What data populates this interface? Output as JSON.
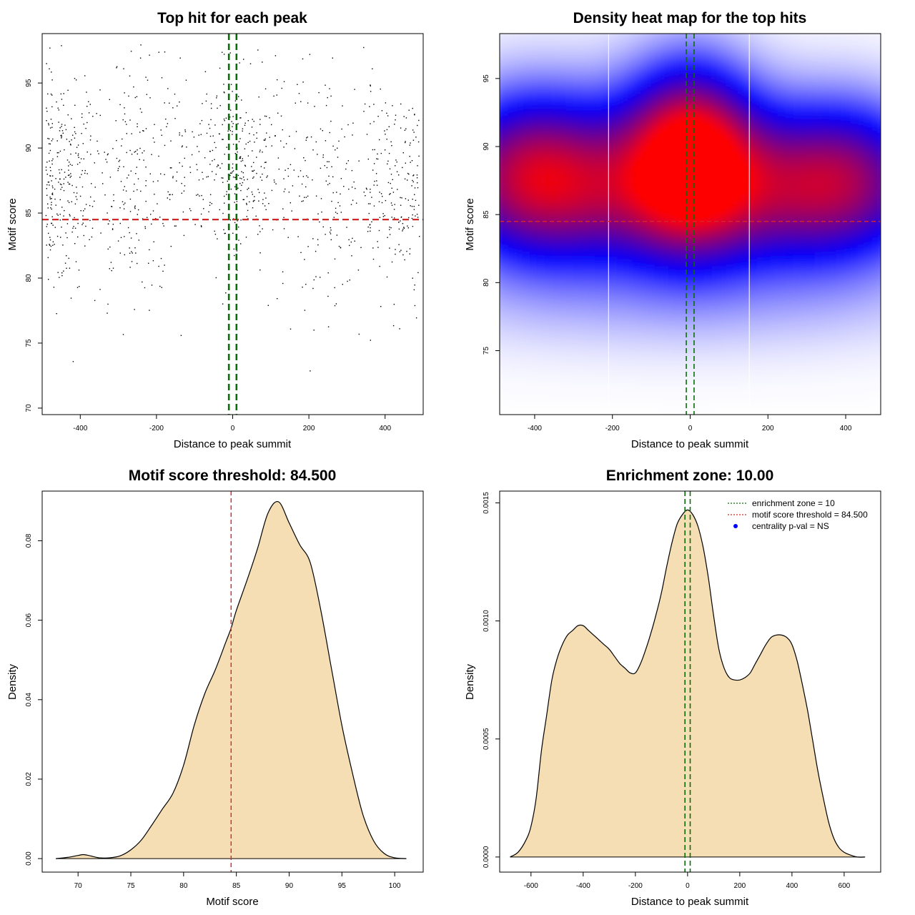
{
  "chart_data": [
    {
      "type": "scatter",
      "title": "Top hit for each peak",
      "xlabel": "Distance to peak summit",
      "ylabel": "Motif score",
      "xlim": [
        -500,
        500
      ],
      "ylim": [
        69.5,
        98.8
      ],
      "xticks": [
        -400,
        -200,
        0,
        200,
        400
      ],
      "yticks": [
        70,
        75,
        80,
        85,
        90,
        95
      ],
      "hline": 84.5,
      "vlines": [
        -10,
        10
      ],
      "point_count": 1200,
      "colors": {
        "points": "#000000",
        "hline": "#d62728",
        "vlines": "#0b6e0b"
      },
      "clusters": [
        {
          "x": -440,
          "sx": 45,
          "y": 87.5,
          "sy": 4,
          "n": 260
        },
        {
          "x": -260,
          "sx": 70,
          "y": 87.5,
          "sy": 4.5,
          "n": 230
        },
        {
          "x": 0,
          "sx": 70,
          "y": 89,
          "sy": 4,
          "n": 330
        },
        {
          "x": 240,
          "sx": 80,
          "y": 87,
          "sy": 4.5,
          "n": 180
        },
        {
          "x": 430,
          "sx": 50,
          "y": 86.5,
          "sy": 4,
          "n": 200
        }
      ]
    },
    {
      "type": "heatmap",
      "title": "Density heat map for the top hits",
      "xlabel": "Distance to peak summit",
      "ylabel": "Motif score",
      "xlim": [
        -490,
        490
      ],
      "ylim": [
        70.3,
        98.3
      ],
      "xticks": [
        -400,
        -200,
        0,
        200,
        400
      ],
      "yticks": [
        75,
        80,
        85,
        90,
        95
      ],
      "hline": 84.5,
      "vlines": [
        -10,
        10
      ],
      "bin_edges_x": [
        -210,
        152
      ],
      "colors": {
        "low": "#ffffff",
        "mid": "#0000ff",
        "high": "#ff0000",
        "hline": "#d62728",
        "vlines": "#0b6e0b"
      },
      "density_blobs": [
        {
          "x": -390,
          "sx": 170,
          "y": 88.3,
          "sy": 4.2,
          "w": 0.75
        },
        {
          "x": 0,
          "sx": 120,
          "y": 89.5,
          "sy": 4.5,
          "w": 1.0
        },
        {
          "x": 370,
          "sx": 170,
          "y": 88.0,
          "sy": 4.0,
          "w": 0.65
        },
        {
          "x": 0,
          "sx": 400,
          "y": 85.5,
          "sy": 3.5,
          "w": 0.35
        },
        {
          "x": 0,
          "sx": 500,
          "y": 79.0,
          "sy": 3.0,
          "w": 0.12
        }
      ]
    },
    {
      "type": "area",
      "title": "Motif score threshold: 84.500",
      "xlabel": "Motif score",
      "ylabel": "Density",
      "xlim": [
        66.6,
        102.7
      ],
      "ylim": [
        -0.0034,
        0.0925
      ],
      "xticks": [
        70,
        75,
        80,
        85,
        90,
        95,
        100
      ],
      "yticks": [
        0.0,
        0.02,
        0.04,
        0.06,
        0.08
      ],
      "ytick_labels": [
        "0.00",
        "0.02",
        "0.04",
        "0.06",
        "0.08"
      ],
      "vline": 84.5,
      "colors": {
        "fill": "#f5deb3",
        "line": "#000000",
        "vline": "#d62728"
      },
      "x": [
        67.9,
        69,
        70,
        70.5,
        71,
        72,
        73,
        74,
        75,
        76,
        77,
        78,
        79,
        80,
        81,
        82,
        83,
        84,
        84.5,
        85,
        86,
        87,
        88,
        89,
        90,
        91,
        92,
        93,
        94,
        95,
        96,
        97,
        98,
        99,
        100,
        101.1
      ],
      "y": [
        0.0,
        0.0003,
        0.0008,
        0.001,
        0.0008,
        0.0002,
        0.0002,
        0.0007,
        0.0022,
        0.0047,
        0.0085,
        0.0125,
        0.0165,
        0.0235,
        0.0335,
        0.0415,
        0.0475,
        0.0545,
        0.058,
        0.0625,
        0.07,
        0.078,
        0.087,
        0.0898,
        0.0845,
        0.079,
        0.0745,
        0.0625,
        0.048,
        0.0335,
        0.0215,
        0.011,
        0.0045,
        0.0013,
        0.0002,
        0.0
      ]
    },
    {
      "type": "area",
      "title": "Enrichment zone: 10.00",
      "xlabel": "Distance to peak summit",
      "ylabel": "Density",
      "xlim": [
        -720,
        740
      ],
      "ylim": [
        -6.4e-05,
        0.00155
      ],
      "xticks": [
        -600,
        -400,
        -200,
        0,
        200,
        400,
        600
      ],
      "yticks": [
        0.0,
        0.0005,
        0.001,
        0.0015
      ],
      "ytick_labels": [
        "0.0000",
        "0.0005",
        "0.0010",
        "0.0015"
      ],
      "vlines": [
        -10,
        10
      ],
      "colors": {
        "fill": "#f5deb3",
        "line": "#000000",
        "vlines": "#0b6e0b",
        "hline_legend": "#d62728",
        "point_legend": "#0000ff"
      },
      "legend": [
        "enrichment zone = 10",
        "motif score threshold = 84.500",
        "centrality p-val = NS"
      ],
      "legend_position": "top-right",
      "x": [
        -680,
        -650,
        -620,
        -600,
        -580,
        -560,
        -540,
        -520,
        -500,
        -480,
        -460,
        -440,
        -420,
        -400,
        -380,
        -350,
        -320,
        -300,
        -280,
        -260,
        -240,
        -220,
        -200,
        -180,
        -160,
        -140,
        -120,
        -100,
        -80,
        -60,
        -40,
        -20,
        0,
        20,
        40,
        60,
        80,
        100,
        120,
        140,
        160,
        180,
        200,
        220,
        240,
        260,
        280,
        300,
        320,
        340,
        360,
        380,
        400,
        420,
        440,
        460,
        480,
        500,
        520,
        540,
        560,
        580,
        600,
        620,
        650,
        680
      ],
      "y": [
        0.0,
        2e-05,
        7e-05,
        0.00013,
        0.00025,
        0.00045,
        0.0006,
        0.00075,
        0.00084,
        0.0009,
        0.00094,
        0.00096,
        0.00098,
        0.00098,
        0.00096,
        0.00093,
        0.0009,
        0.00088,
        0.00085,
        0.00082,
        0.0008,
        0.00078,
        0.00078,
        0.00082,
        0.00088,
        0.00095,
        0.00103,
        0.00112,
        0.00123,
        0.00133,
        0.00141,
        0.00145,
        0.00147,
        0.00145,
        0.0014,
        0.00131,
        0.00118,
        0.00102,
        0.00088,
        0.0008,
        0.00076,
        0.00075,
        0.00075,
        0.00076,
        0.00078,
        0.00082,
        0.00086,
        0.0009,
        0.00093,
        0.00094,
        0.00094,
        0.00093,
        0.0009,
        0.00083,
        0.00073,
        0.00062,
        0.00049,
        0.00036,
        0.00025,
        0.00015,
        8e-05,
        4e-05,
        2e-05,
        1e-05,
        0.0,
        0.0
      ]
    }
  ]
}
